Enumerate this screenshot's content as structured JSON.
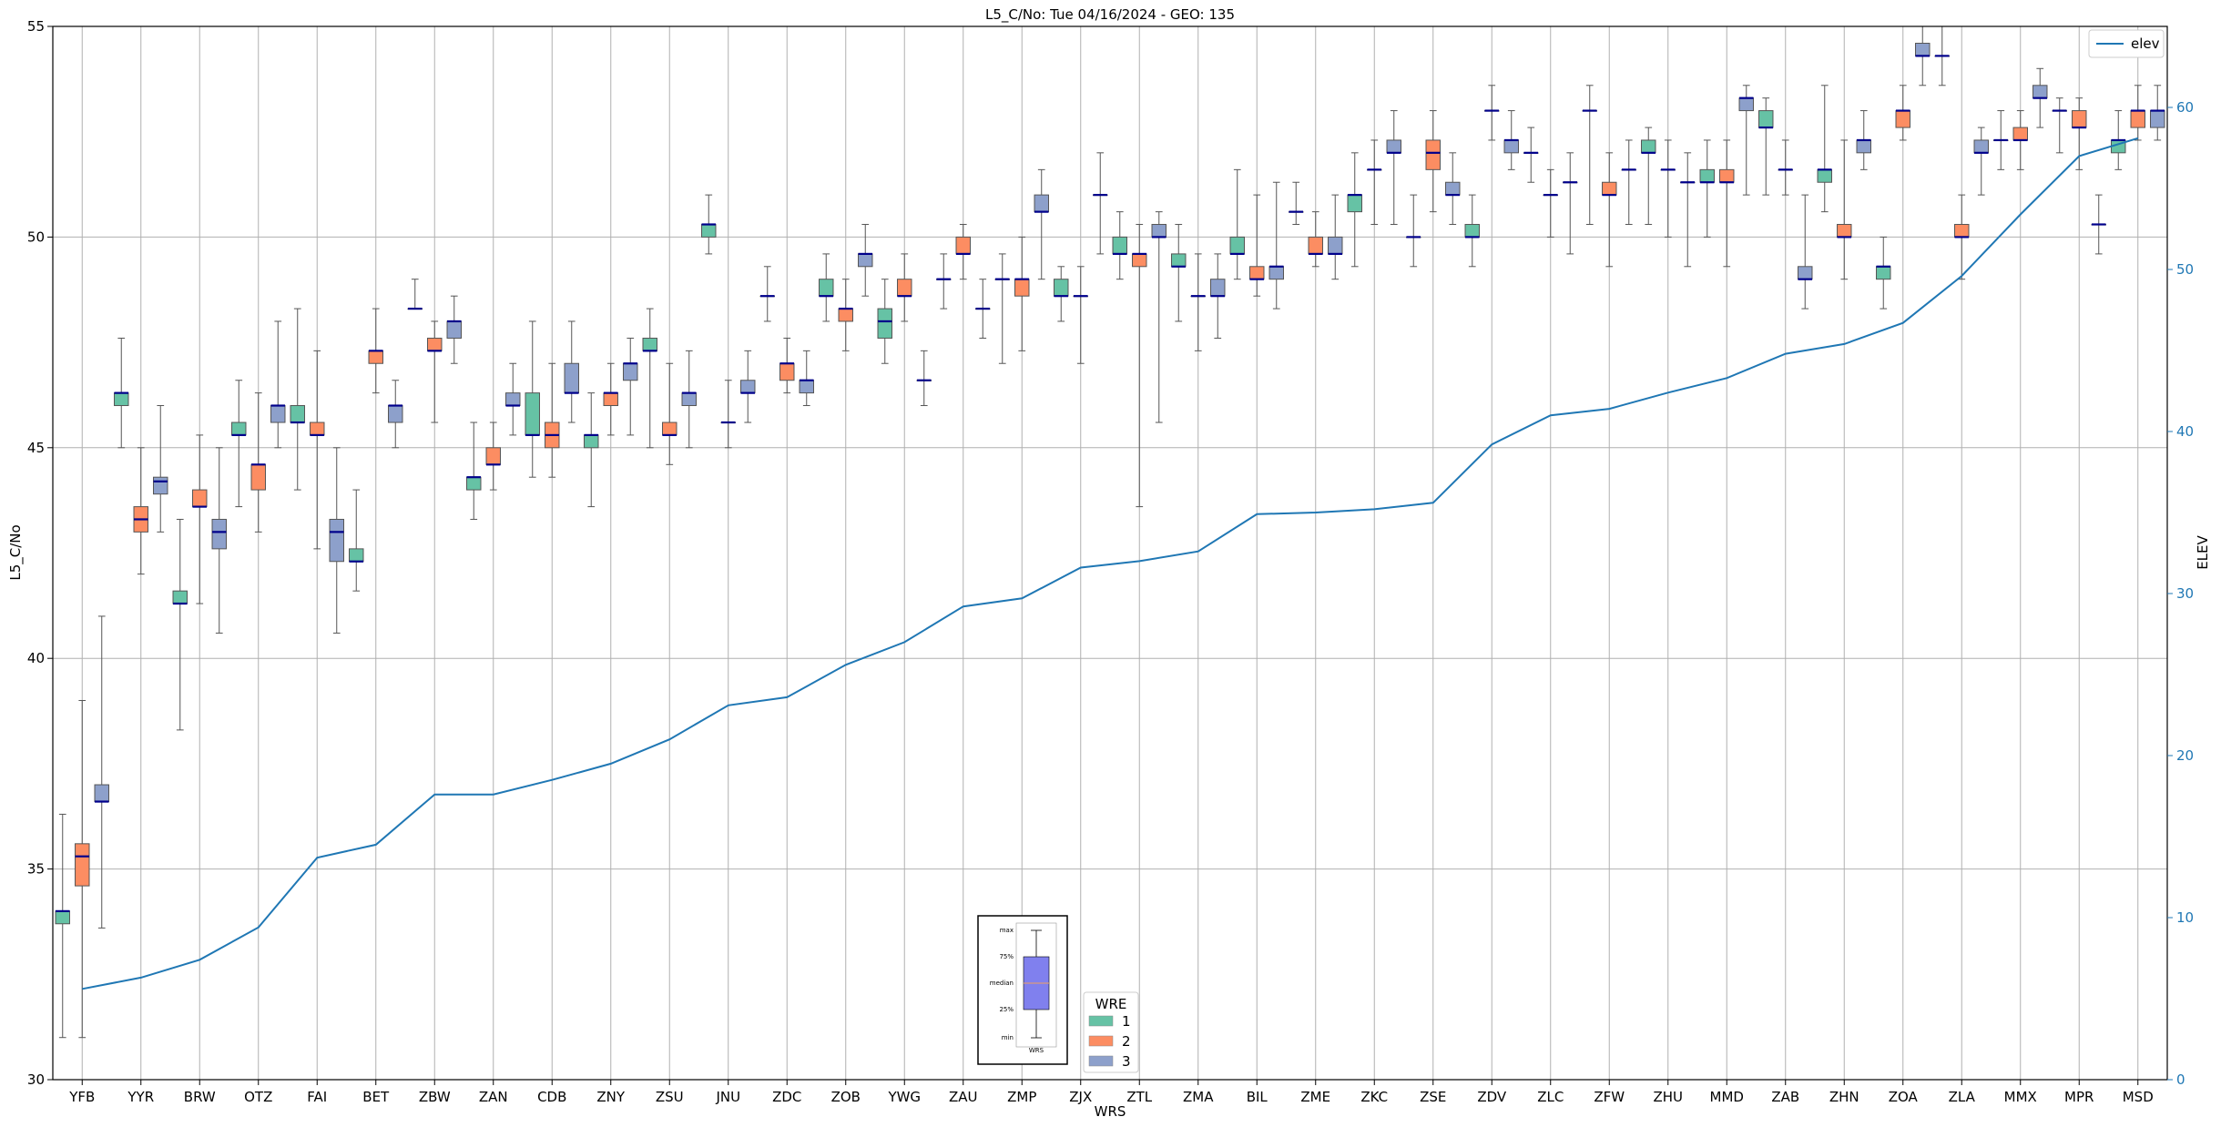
{
  "chart_data": {
    "type": "box",
    "title": "L5_C/No: Tue 04/16/2024 - GEO: 135",
    "xlabel": "WRS",
    "ylabel": "L5_C/No",
    "y2label": "ELEV",
    "ylim": [
      30,
      55
    ],
    "y2lim": [
      0,
      65
    ],
    "yticks": [
      30,
      35,
      40,
      45,
      50,
      55
    ],
    "y2ticks": [
      0,
      10,
      20,
      30,
      40,
      50,
      60
    ],
    "grid": true,
    "categories": [
      "YFB",
      "YYR",
      "BRW",
      "OTZ",
      "FAI",
      "BET",
      "ZBW",
      "ZAN",
      "CDB",
      "ZNY",
      "ZSU",
      "JNU",
      "ZDC",
      "ZOB",
      "YWG",
      "ZAU",
      "ZMP",
      "ZJX",
      "ZTL",
      "ZMA",
      "BIL",
      "ZME",
      "ZKC",
      "ZSE",
      "ZDV",
      "ZLC",
      "ZFW",
      "ZHU",
      "MMD",
      "ZAB",
      "ZHN",
      "ZOA",
      "ZLA",
      "MMX",
      "MPR",
      "MSD"
    ],
    "wre_colors": {
      "1": "#66c2a5",
      "2": "#fc8d62",
      "3": "#8da0cb"
    },
    "median_color": "#00008b",
    "boxes": [
      {
        "site": "YFB",
        "wre": 1,
        "min": 31.0,
        "q1": 33.7,
        "median": 34.0,
        "q3": 34.0,
        "max": 36.3
      },
      {
        "site": "YFB",
        "wre": 2,
        "min": 31.0,
        "q1": 34.6,
        "median": 35.3,
        "q3": 35.6,
        "max": 39.0
      },
      {
        "site": "YFB",
        "wre": 3,
        "min": 33.6,
        "q1": 36.6,
        "median": 36.6,
        "q3": 37.0,
        "max": 41.0
      },
      {
        "site": "YYR",
        "wre": 1,
        "min": 45.0,
        "q1": 46.0,
        "median": 46.3,
        "q3": 46.3,
        "max": 47.6
      },
      {
        "site": "YYR",
        "wre": 2,
        "min": 42.0,
        "q1": 43.0,
        "median": 43.3,
        "q3": 43.6,
        "max": 45.0
      },
      {
        "site": "YYR",
        "wre": 3,
        "min": 43.0,
        "q1": 43.9,
        "median": 44.2,
        "q3": 44.3,
        "max": 46.0
      },
      {
        "site": "BRW",
        "wre": 1,
        "min": 38.3,
        "q1": 41.3,
        "median": 41.3,
        "q3": 41.6,
        "max": 43.3
      },
      {
        "site": "BRW",
        "wre": 2,
        "min": 41.3,
        "q1": 43.6,
        "median": 43.6,
        "q3": 44.0,
        "max": 45.3
      },
      {
        "site": "BRW",
        "wre": 3,
        "min": 40.6,
        "q1": 42.6,
        "median": 43.0,
        "q3": 43.3,
        "max": 45.0
      },
      {
        "site": "OTZ",
        "wre": 1,
        "min": 43.6,
        "q1": 45.3,
        "median": 45.3,
        "q3": 45.6,
        "max": 46.6
      },
      {
        "site": "OTZ",
        "wre": 2,
        "min": 43.0,
        "q1": 44.0,
        "median": 44.6,
        "q3": 44.6,
        "max": 46.3
      },
      {
        "site": "OTZ",
        "wre": 3,
        "min": 45.0,
        "q1": 45.6,
        "median": 46.0,
        "q3": 46.0,
        "max": 48.0
      },
      {
        "site": "FAI",
        "wre": 1,
        "min": 44.0,
        "q1": 45.6,
        "median": 45.6,
        "q3": 46.0,
        "max": 48.3
      },
      {
        "site": "FAI",
        "wre": 2,
        "min": 42.6,
        "q1": 45.3,
        "median": 45.3,
        "q3": 45.6,
        "max": 47.3
      },
      {
        "site": "FAI",
        "wre": 3,
        "min": 40.6,
        "q1": 42.3,
        "median": 43.0,
        "q3": 43.3,
        "max": 45.0
      },
      {
        "site": "BET",
        "wre": 1,
        "min": 41.6,
        "q1": 42.3,
        "median": 42.3,
        "q3": 42.6,
        "max": 44.0
      },
      {
        "site": "BET",
        "wre": 2,
        "min": 46.3,
        "q1": 47.0,
        "median": 47.3,
        "q3": 47.3,
        "max": 48.3
      },
      {
        "site": "BET",
        "wre": 3,
        "min": 45.0,
        "q1": 45.6,
        "median": 46.0,
        "q3": 46.0,
        "max": 46.6
      },
      {
        "site": "ZBW",
        "wre": 1,
        "min": 48.3,
        "q1": 48.3,
        "median": 48.3,
        "q3": 48.3,
        "max": 49.0
      },
      {
        "site": "ZBW",
        "wre": 2,
        "min": 45.6,
        "q1": 47.3,
        "median": 47.3,
        "q3": 47.6,
        "max": 48.0
      },
      {
        "site": "ZBW",
        "wre": 3,
        "min": 47.0,
        "q1": 47.6,
        "median": 48.0,
        "q3": 48.0,
        "max": 48.6
      },
      {
        "site": "ZAN",
        "wre": 1,
        "min": 43.3,
        "q1": 44.0,
        "median": 44.3,
        "q3": 44.3,
        "max": 45.6
      },
      {
        "site": "ZAN",
        "wre": 2,
        "min": 44.0,
        "q1": 44.6,
        "median": 44.6,
        "q3": 45.0,
        "max": 45.6
      },
      {
        "site": "ZAN",
        "wre": 3,
        "min": 45.3,
        "q1": 46.0,
        "median": 46.0,
        "q3": 46.3,
        "max": 47.0
      },
      {
        "site": "CDB",
        "wre": 1,
        "min": 44.3,
        "q1": 45.3,
        "median": 45.3,
        "q3": 46.3,
        "max": 48.0
      },
      {
        "site": "CDB",
        "wre": 2,
        "min": 44.3,
        "q1": 45.0,
        "median": 45.3,
        "q3": 45.6,
        "max": 47.0
      },
      {
        "site": "CDB",
        "wre": 3,
        "min": 45.6,
        "q1": 46.3,
        "median": 46.3,
        "q3": 47.0,
        "max": 48.0
      },
      {
        "site": "ZNY",
        "wre": 1,
        "min": 43.6,
        "q1": 45.0,
        "median": 45.3,
        "q3": 45.3,
        "max": 46.3
      },
      {
        "site": "ZNY",
        "wre": 2,
        "min": 45.3,
        "q1": 46.0,
        "median": 46.3,
        "q3": 46.3,
        "max": 47.0
      },
      {
        "site": "ZNY",
        "wre": 3,
        "min": 45.3,
        "q1": 46.6,
        "median": 47.0,
        "q3": 47.0,
        "max": 47.6
      },
      {
        "site": "ZSU",
        "wre": 1,
        "min": 45.0,
        "q1": 47.3,
        "median": 47.3,
        "q3": 47.6,
        "max": 48.3
      },
      {
        "site": "ZSU",
        "wre": 2,
        "min": 44.6,
        "q1": 45.3,
        "median": 45.3,
        "q3": 45.6,
        "max": 47.0
      },
      {
        "site": "ZSU",
        "wre": 3,
        "min": 45.0,
        "q1": 46.0,
        "median": 46.3,
        "q3": 46.3,
        "max": 47.3
      },
      {
        "site": "JNU",
        "wre": 1,
        "min": 49.6,
        "q1": 50.0,
        "median": 50.3,
        "q3": 50.3,
        "max": 51.0
      },
      {
        "site": "JNU",
        "wre": 2,
        "min": 45.0,
        "q1": 45.6,
        "median": 45.6,
        "q3": 45.6,
        "max": 46.6
      },
      {
        "site": "JNU",
        "wre": 3,
        "min": 45.6,
        "q1": 46.3,
        "median": 46.3,
        "q3": 46.6,
        "max": 47.3
      },
      {
        "site": "ZDC",
        "wre": 1,
        "min": 48.0,
        "q1": 48.6,
        "median": 48.6,
        "q3": 48.6,
        "max": 49.3
      },
      {
        "site": "ZDC",
        "wre": 2,
        "min": 46.3,
        "q1": 46.6,
        "median": 47.0,
        "q3": 47.0,
        "max": 47.6
      },
      {
        "site": "ZDC",
        "wre": 3,
        "min": 46.0,
        "q1": 46.3,
        "median": 46.6,
        "q3": 46.6,
        "max": 47.3
      },
      {
        "site": "ZOB",
        "wre": 1,
        "min": 48.0,
        "q1": 48.6,
        "median": 48.6,
        "q3": 49.0,
        "max": 49.6
      },
      {
        "site": "ZOB",
        "wre": 2,
        "min": 47.3,
        "q1": 48.0,
        "median": 48.3,
        "q3": 48.3,
        "max": 49.0
      },
      {
        "site": "ZOB",
        "wre": 3,
        "min": 48.6,
        "q1": 49.3,
        "median": 49.6,
        "q3": 49.6,
        "max": 50.3
      },
      {
        "site": "YWG",
        "wre": 1,
        "min": 47.0,
        "q1": 47.6,
        "median": 48.0,
        "q3": 48.3,
        "max": 49.0
      },
      {
        "site": "YWG",
        "wre": 2,
        "min": 48.0,
        "q1": 48.6,
        "median": 48.6,
        "q3": 49.0,
        "max": 49.6
      },
      {
        "site": "YWG",
        "wre": 3,
        "min": 46.0,
        "q1": 46.6,
        "median": 46.6,
        "q3": 46.6,
        "max": 47.3
      },
      {
        "site": "ZAU",
        "wre": 1,
        "min": 48.3,
        "q1": 49.0,
        "median": 49.0,
        "q3": 49.0,
        "max": 49.6
      },
      {
        "site": "ZAU",
        "wre": 2,
        "min": 49.0,
        "q1": 49.6,
        "median": 49.6,
        "q3": 50.0,
        "max": 50.3
      },
      {
        "site": "ZAU",
        "wre": 3,
        "min": 47.6,
        "q1": 48.3,
        "median": 48.3,
        "q3": 48.3,
        "max": 49.0
      },
      {
        "site": "ZMP",
        "wre": 1,
        "min": 47.0,
        "q1": 49.0,
        "median": 49.0,
        "q3": 49.0,
        "max": 49.6
      },
      {
        "site": "ZMP",
        "wre": 2,
        "min": 47.3,
        "q1": 48.6,
        "median": 49.0,
        "q3": 49.0,
        "max": 50.0
      },
      {
        "site": "ZMP",
        "wre": 3,
        "min": 49.0,
        "q1": 50.6,
        "median": 50.6,
        "q3": 51.0,
        "max": 51.6
      },
      {
        "site": "ZJX",
        "wre": 1,
        "min": 48.0,
        "q1": 48.6,
        "median": 48.6,
        "q3": 49.0,
        "max": 49.3
      },
      {
        "site": "ZJX",
        "wre": 2,
        "min": 47.0,
        "q1": 48.6,
        "median": 48.6,
        "q3": 48.6,
        "max": 49.3
      },
      {
        "site": "ZJX",
        "wre": 3,
        "min": 49.6,
        "q1": 51.0,
        "median": 51.0,
        "q3": 51.0,
        "max": 52.0
      },
      {
        "site": "ZTL",
        "wre": 1,
        "min": 49.0,
        "q1": 49.6,
        "median": 49.6,
        "q3": 50.0,
        "max": 50.6
      },
      {
        "site": "ZTL",
        "wre": 2,
        "min": 43.6,
        "q1": 49.3,
        "median": 49.6,
        "q3": 49.6,
        "max": 50.3
      },
      {
        "site": "ZTL",
        "wre": 3,
        "min": 45.6,
        "q1": 50.0,
        "median": 50.0,
        "q3": 50.3,
        "max": 50.6
      },
      {
        "site": "ZMA",
        "wre": 1,
        "min": 48.0,
        "q1": 49.3,
        "median": 49.3,
        "q3": 49.6,
        "max": 50.3
      },
      {
        "site": "ZMA",
        "wre": 2,
        "min": 47.3,
        "q1": 48.6,
        "median": 48.6,
        "q3": 48.6,
        "max": 49.6
      },
      {
        "site": "ZMA",
        "wre": 3,
        "min": 47.6,
        "q1": 48.6,
        "median": 48.6,
        "q3": 49.0,
        "max": 49.6
      },
      {
        "site": "BIL",
        "wre": 1,
        "min": 49.0,
        "q1": 49.6,
        "median": 49.6,
        "q3": 50.0,
        "max": 51.6
      },
      {
        "site": "BIL",
        "wre": 2,
        "min": 48.6,
        "q1": 49.0,
        "median": 49.0,
        "q3": 49.3,
        "max": 51.0
      },
      {
        "site": "BIL",
        "wre": 3,
        "min": 48.3,
        "q1": 49.0,
        "median": 49.3,
        "q3": 49.3,
        "max": 51.3
      },
      {
        "site": "ZME",
        "wre": 1,
        "min": 50.3,
        "q1": 50.6,
        "median": 50.6,
        "q3": 50.6,
        "max": 51.3
      },
      {
        "site": "ZME",
        "wre": 2,
        "min": 49.3,
        "q1": 49.6,
        "median": 49.6,
        "q3": 50.0,
        "max": 50.6
      },
      {
        "site": "ZME",
        "wre": 3,
        "min": 49.0,
        "q1": 49.6,
        "median": 49.6,
        "q3": 50.0,
        "max": 51.0
      },
      {
        "site": "ZKC",
        "wre": 1,
        "min": 49.3,
        "q1": 50.6,
        "median": 51.0,
        "q3": 51.0,
        "max": 52.0
      },
      {
        "site": "ZKC",
        "wre": 2,
        "min": 50.3,
        "q1": 51.6,
        "median": 51.6,
        "q3": 51.6,
        "max": 52.3
      },
      {
        "site": "ZKC",
        "wre": 3,
        "min": 50.3,
        "q1": 52.0,
        "median": 52.0,
        "q3": 52.3,
        "max": 53.0
      },
      {
        "site": "ZSE",
        "wre": 1,
        "min": 49.3,
        "q1": 50.0,
        "median": 50.0,
        "q3": 50.0,
        "max": 51.0
      },
      {
        "site": "ZSE",
        "wre": 2,
        "min": 50.6,
        "q1": 51.6,
        "median": 52.0,
        "q3": 52.3,
        "max": 53.0
      },
      {
        "site": "ZSE",
        "wre": 3,
        "min": 50.3,
        "q1": 51.0,
        "median": 51.0,
        "q3": 51.3,
        "max": 52.0
      },
      {
        "site": "ZDV",
        "wre": 1,
        "min": 49.3,
        "q1": 50.0,
        "median": 50.0,
        "q3": 50.3,
        "max": 51.0
      },
      {
        "site": "ZDV",
        "wre": 2,
        "min": 52.3,
        "q1": 53.0,
        "median": 53.0,
        "q3": 53.0,
        "max": 53.6
      },
      {
        "site": "ZDV",
        "wre": 3,
        "min": 51.6,
        "q1": 52.0,
        "median": 52.3,
        "q3": 52.3,
        "max": 53.0
      },
      {
        "site": "ZLC",
        "wre": 1,
        "min": 51.3,
        "q1": 52.0,
        "median": 52.0,
        "q3": 52.0,
        "max": 52.6
      },
      {
        "site": "ZLC",
        "wre": 2,
        "min": 50.0,
        "q1": 51.0,
        "median": 51.0,
        "q3": 51.0,
        "max": 51.6
      },
      {
        "site": "ZLC",
        "wre": 3,
        "min": 49.6,
        "q1": 51.3,
        "median": 51.3,
        "q3": 51.3,
        "max": 52.0
      },
      {
        "site": "ZFW",
        "wre": 1,
        "min": 50.3,
        "q1": 53.0,
        "median": 53.0,
        "q3": 53.0,
        "max": 53.6
      },
      {
        "site": "ZFW",
        "wre": 2,
        "min": 49.3,
        "q1": 51.0,
        "median": 51.0,
        "q3": 51.3,
        "max": 52.0
      },
      {
        "site": "ZFW",
        "wre": 3,
        "min": 50.3,
        "q1": 51.6,
        "median": 51.6,
        "q3": 51.6,
        "max": 52.3
      },
      {
        "site": "ZHU",
        "wre": 1,
        "min": 50.3,
        "q1": 52.0,
        "median": 52.0,
        "q3": 52.3,
        "max": 52.6
      },
      {
        "site": "ZHU",
        "wre": 2,
        "min": 50.0,
        "q1": 51.6,
        "median": 51.6,
        "q3": 51.6,
        "max": 52.3
      },
      {
        "site": "ZHU",
        "wre": 3,
        "min": 49.3,
        "q1": 51.3,
        "median": 51.3,
        "q3": 51.3,
        "max": 52.0
      },
      {
        "site": "MMD",
        "wre": 1,
        "min": 50.0,
        "q1": 51.3,
        "median": 51.3,
        "q3": 51.6,
        "max": 52.3
      },
      {
        "site": "MMD",
        "wre": 2,
        "min": 49.3,
        "q1": 51.3,
        "median": 51.3,
        "q3": 51.6,
        "max": 52.3
      },
      {
        "site": "MMD",
        "wre": 3,
        "min": 51.0,
        "q1": 53.0,
        "median": 53.3,
        "q3": 53.3,
        "max": 53.6
      },
      {
        "site": "ZAB",
        "wre": 1,
        "min": 51.0,
        "q1": 52.6,
        "median": 52.6,
        "q3": 53.0,
        "max": 53.3
      },
      {
        "site": "ZAB",
        "wre": 2,
        "min": 51.0,
        "q1": 51.6,
        "median": 51.6,
        "q3": 51.6,
        "max": 52.3
      },
      {
        "site": "ZAB",
        "wre": 3,
        "min": 48.3,
        "q1": 49.0,
        "median": 49.0,
        "q3": 49.3,
        "max": 51.0
      },
      {
        "site": "ZHN",
        "wre": 1,
        "min": 50.6,
        "q1": 51.3,
        "median": 51.6,
        "q3": 51.6,
        "max": 53.6
      },
      {
        "site": "ZHN",
        "wre": 2,
        "min": 49.0,
        "q1": 50.0,
        "median": 50.0,
        "q3": 50.3,
        "max": 52.3
      },
      {
        "site": "ZHN",
        "wre": 3,
        "min": 51.6,
        "q1": 52.0,
        "median": 52.3,
        "q3": 52.3,
        "max": 53.0
      },
      {
        "site": "ZOA",
        "wre": 1,
        "min": 48.3,
        "q1": 49.0,
        "median": 49.3,
        "q3": 49.3,
        "max": 50.0
      },
      {
        "site": "ZOA",
        "wre": 2,
        "min": 52.3,
        "q1": 52.6,
        "median": 53.0,
        "q3": 53.0,
        "max": 53.6
      },
      {
        "site": "ZOA",
        "wre": 3,
        "min": 53.6,
        "q1": 54.3,
        "median": 54.3,
        "q3": 54.6,
        "max": 55.0
      },
      {
        "site": "ZLA",
        "wre": 1,
        "min": 53.6,
        "q1": 54.3,
        "median": 54.3,
        "q3": 54.3,
        "max": 55.0
      },
      {
        "site": "ZLA",
        "wre": 2,
        "min": 49.0,
        "q1": 50.0,
        "median": 50.0,
        "q3": 50.3,
        "max": 51.0
      },
      {
        "site": "ZLA",
        "wre": 3,
        "min": 51.0,
        "q1": 52.0,
        "median": 52.0,
        "q3": 52.3,
        "max": 52.6
      },
      {
        "site": "MMX",
        "wre": 1,
        "min": 51.6,
        "q1": 52.3,
        "median": 52.3,
        "q3": 52.3,
        "max": 53.0
      },
      {
        "site": "MMX",
        "wre": 2,
        "min": 51.6,
        "q1": 52.3,
        "median": 52.3,
        "q3": 52.6,
        "max": 53.0
      },
      {
        "site": "MMX",
        "wre": 3,
        "min": 52.6,
        "q1": 53.3,
        "median": 53.3,
        "q3": 53.6,
        "max": 54.0
      },
      {
        "site": "MPR",
        "wre": 1,
        "min": 52.0,
        "q1": 53.0,
        "median": 53.0,
        "q3": 53.0,
        "max": 53.3
      },
      {
        "site": "MPR",
        "wre": 2,
        "min": 51.6,
        "q1": 52.6,
        "median": 52.6,
        "q3": 53.0,
        "max": 53.3
      },
      {
        "site": "MPR",
        "wre": 3,
        "min": 49.6,
        "q1": 50.3,
        "median": 50.3,
        "q3": 50.3,
        "max": 51.0
      },
      {
        "site": "MSD",
        "wre": 1,
        "min": 51.6,
        "q1": 52.0,
        "median": 52.3,
        "q3": 52.3,
        "max": 53.0
      },
      {
        "site": "MSD",
        "wre": 2,
        "min": 52.3,
        "q1": 52.6,
        "median": 53.0,
        "q3": 53.0,
        "max": 53.6
      },
      {
        "site": "MSD",
        "wre": 3,
        "min": 52.3,
        "q1": 52.6,
        "median": 53.0,
        "q3": 53.0,
        "max": 53.6
      }
    ],
    "elev_series": {
      "name": "elev",
      "color": "#1f77b4",
      "values": [
        5.6,
        6.3,
        7.4,
        9.4,
        13.7,
        14.5,
        17.6,
        17.6,
        18.5,
        19.5,
        21.0,
        23.1,
        23.6,
        25.6,
        27.0,
        29.2,
        29.7,
        31.6,
        32.0,
        32.6,
        34.9,
        35.0,
        35.2,
        35.6,
        39.2,
        41.0,
        41.4,
        42.4,
        43.3,
        44.8,
        45.4,
        46.7,
        49.6,
        53.4,
        57.0,
        58.1
      ]
    },
    "legend": {
      "title": "WRE",
      "entries": [
        "1",
        "2",
        "3"
      ],
      "placement": "bottom-center"
    },
    "elev_legend": {
      "entries": [
        "elev"
      ],
      "placement": "top-right"
    },
    "inset_legend": {
      "labels": [
        "max",
        "75%",
        "median",
        "25%",
        "min"
      ],
      "xlabel": "WRS"
    }
  }
}
